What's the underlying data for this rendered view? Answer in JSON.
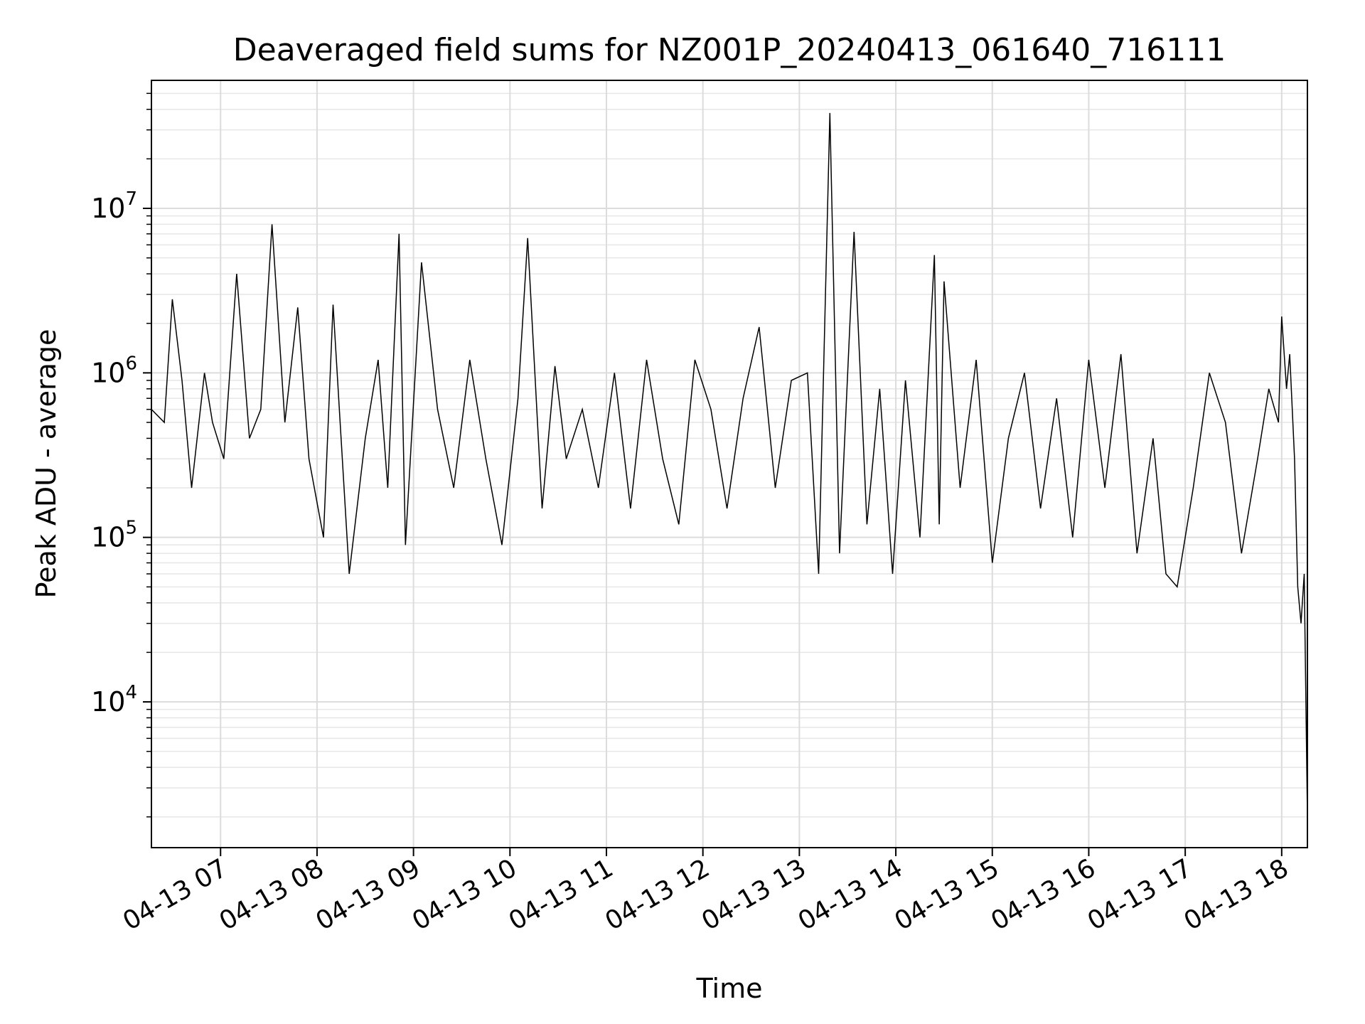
{
  "chart_data": {
    "type": "line",
    "title": "Deaveraged field sums for NZ001P_20240413_061640_716111",
    "xlabel": "Time",
    "ylabel": "Peak ADU - average",
    "yscale": "log",
    "ylim": [
      1300,
      60000000
    ],
    "xlim": [
      "2024-04-13 06:17",
      "2024-04-13 18:16"
    ],
    "grid": true,
    "line_color": "#000000",
    "x_ticks": [
      {
        "value": "2024-04-13 07:00",
        "label": "04-13 07"
      },
      {
        "value": "2024-04-13 08:00",
        "label": "04-13 08"
      },
      {
        "value": "2024-04-13 09:00",
        "label": "04-13 09"
      },
      {
        "value": "2024-04-13 10:00",
        "label": "04-13 10"
      },
      {
        "value": "2024-04-13 11:00",
        "label": "04-13 11"
      },
      {
        "value": "2024-04-13 12:00",
        "label": "04-13 12"
      },
      {
        "value": "2024-04-13 13:00",
        "label": "04-13 13"
      },
      {
        "value": "2024-04-13 14:00",
        "label": "04-13 14"
      },
      {
        "value": "2024-04-13 15:00",
        "label": "04-13 15"
      },
      {
        "value": "2024-04-13 16:00",
        "label": "04-13 16"
      },
      {
        "value": "2024-04-13 17:00",
        "label": "04-13 17"
      },
      {
        "value": "2024-04-13 18:00",
        "label": "04-13 18"
      }
    ],
    "y_ticks": [
      {
        "value": 10000,
        "base": "10",
        "exp": "4"
      },
      {
        "value": 100000,
        "base": "10",
        "exp": "5"
      },
      {
        "value": 1000000,
        "base": "10",
        "exp": "6"
      },
      {
        "value": 10000000,
        "base": "10",
        "exp": "7"
      }
    ],
    "series": [
      {
        "x": [
          "2024-04-13 06:17",
          "2024-04-13 06:25",
          "2024-04-13 06:30",
          "2024-04-13 06:36",
          "2024-04-13 06:42",
          "2024-04-13 06:50",
          "2024-04-13 06:55",
          "2024-04-13 07:02",
          "2024-04-13 07:10",
          "2024-04-13 07:18",
          "2024-04-13 07:25",
          "2024-04-13 07:32",
          "2024-04-13 07:40",
          "2024-04-13 07:48",
          "2024-04-13 07:55",
          "2024-04-13 08:04",
          "2024-04-13 08:10",
          "2024-04-13 08:20",
          "2024-04-13 08:30",
          "2024-04-13 08:38",
          "2024-04-13 08:44",
          "2024-04-13 08:51",
          "2024-04-13 08:55",
          "2024-04-13 09:05",
          "2024-04-13 09:15",
          "2024-04-13 09:25",
          "2024-04-13 09:35",
          "2024-04-13 09:45",
          "2024-04-13 09:55",
          "2024-04-13 10:05",
          "2024-04-13 10:11",
          "2024-04-13 10:20",
          "2024-04-13 10:28",
          "2024-04-13 10:35",
          "2024-04-13 10:45",
          "2024-04-13 10:55",
          "2024-04-13 11:05",
          "2024-04-13 11:15",
          "2024-04-13 11:25",
          "2024-04-13 11:35",
          "2024-04-13 11:45",
          "2024-04-13 11:55",
          "2024-04-13 12:05",
          "2024-04-13 12:15",
          "2024-04-13 12:25",
          "2024-04-13 12:35",
          "2024-04-13 12:45",
          "2024-04-13 12:55",
          "2024-04-13 13:05",
          "2024-04-13 13:12",
          "2024-04-13 13:19",
          "2024-04-13 13:25",
          "2024-04-13 13:34",
          "2024-04-13 13:42",
          "2024-04-13 13:50",
          "2024-04-13 13:58",
          "2024-04-13 14:06",
          "2024-04-13 14:15",
          "2024-04-13 14:24",
          "2024-04-13 14:27",
          "2024-04-13 14:30",
          "2024-04-13 14:40",
          "2024-04-13 14:50",
          "2024-04-13 15:00",
          "2024-04-13 15:10",
          "2024-04-13 15:20",
          "2024-04-13 15:30",
          "2024-04-13 15:40",
          "2024-04-13 15:50",
          "2024-04-13 16:00",
          "2024-04-13 16:10",
          "2024-04-13 16:20",
          "2024-04-13 16:30",
          "2024-04-13 16:40",
          "2024-04-13 16:48",
          "2024-04-13 16:55",
          "2024-04-13 17:05",
          "2024-04-13 17:15",
          "2024-04-13 17:25",
          "2024-04-13 17:35",
          "2024-04-13 17:45",
          "2024-04-13 17:52",
          "2024-04-13 17:58",
          "2024-04-13 18:00",
          "2024-04-13 18:03",
          "2024-04-13 18:05",
          "2024-04-13 18:08",
          "2024-04-13 18:10",
          "2024-04-13 18:12",
          "2024-04-13 18:14",
          "2024-04-13 18:16"
        ],
        "y": [
          600000,
          500000,
          2800000,
          900000,
          200000,
          1000000,
          500000,
          300000,
          4000000,
          400000,
          600000,
          8000000,
          500000,
          2500000,
          300000,
          100000,
          2600000,
          60000,
          400000,
          1200000,
          200000,
          7000000,
          90000,
          4700000,
          600000,
          200000,
          1200000,
          300000,
          90000,
          700000,
          6600000,
          150000,
          1100000,
          300000,
          600000,
          200000,
          1000000,
          150000,
          1200000,
          300000,
          120000,
          1200000,
          600000,
          150000,
          700000,
          1900000,
          200000,
          900000,
          1000000,
          60000,
          38000000,
          80000,
          7200000,
          120000,
          800000,
          60000,
          900000,
          100000,
          5200000,
          120000,
          3600000,
          200000,
          1200000,
          70000,
          400000,
          1000000,
          150000,
          700000,
          100000,
          1200000,
          200000,
          1300000,
          80000,
          400000,
          60000,
          50000,
          200000,
          1000000,
          500000,
          80000,
          300000,
          800000,
          500000,
          2200000,
          800000,
          1300000,
          300000,
          50000,
          30000,
          60000,
          2000
        ]
      }
    ]
  }
}
